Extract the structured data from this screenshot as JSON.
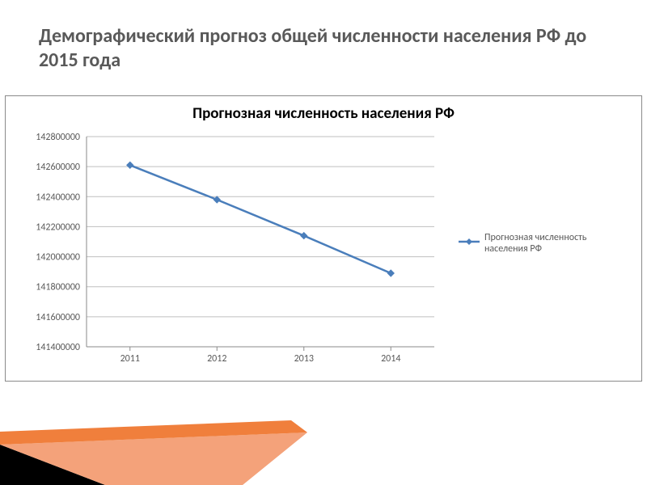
{
  "slide": {
    "title": "Демографический прогноз общей численности населения РФ до 2015 года",
    "title_fontsize": 24,
    "title_color": "#595959",
    "background_color": "#ffffff"
  },
  "chart": {
    "type": "line",
    "title": "Прогнозная численность населения РФ",
    "title_fontsize": 19,
    "title_color": "#000000",
    "border_color": "#8a8a8a",
    "plot_background": "#ffffff",
    "axis_line_color": "#8a8a8a",
    "gridline_color": "#bfbfbf",
    "tick_label_color": "#595959",
    "tick_fontsize": 12,
    "y": {
      "min": 141400000,
      "max": 142800000,
      "ticks": [
        141400000,
        141600000,
        141800000,
        142000000,
        142200000,
        142400000,
        142600000,
        142800000
      ]
    },
    "x": {
      "categories": [
        "2011",
        "2012",
        "2013",
        "2014"
      ]
    },
    "series": [
      {
        "name": "Прогнозная численность населения РФ",
        "color": "#4a7ebb",
        "line_width": 2.5,
        "marker": "diamond",
        "marker_size": 8,
        "values": [
          142610000,
          142380000,
          142140000,
          141890000
        ]
      }
    ],
    "legend": {
      "position": "right",
      "fontsize": 12,
      "label_color": "#595959"
    }
  },
  "decoration": {
    "colors": {
      "orange": "#f07f3c",
      "salmon": "#f4a27a",
      "black": "#000000"
    }
  }
}
